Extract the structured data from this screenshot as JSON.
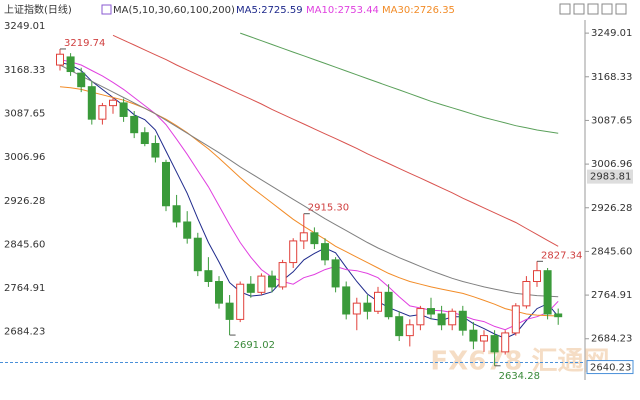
{
  "chart_data": {
    "type": "candlestick",
    "title": "上证指数(日线)",
    "indicator": "MA(5,10,30,60,100,200)",
    "legend": [
      "MA5:2725.59",
      "MA10:2753.44",
      "MA30:2726.35"
    ],
    "watermark": "FX678 汇通网",
    "ylim": [
      2608,
      3264
    ],
    "yticks": [
      3249.01,
      3168.33,
      3087.65,
      3006.96,
      2926.28,
      {
        "value": 2845.6,
        "label": "2845.60"
      },
      2764.91,
      2684.23
    ],
    "up_color": "#e0403a",
    "down_color": "#3a9a3a",
    "candles": {
      "open": [
        3190,
        3205,
        3175,
        3150,
        3090,
        3115,
        3120,
        3095,
        3065,
        3045,
        3010,
        2930,
        2900,
        2870,
        2810,
        2790,
        2750,
        2720,
        2785,
        2770,
        2800,
        2780,
        2825,
        2865,
        2880,
        2860,
        2830,
        2780,
        2730,
        2750,
        2735,
        2770,
        2725,
        2690,
        2710,
        2740,
        2730,
        2710,
        2735,
        2700,
        2680,
        2690,
        2660,
        2695,
        2745,
        2790,
        2810,
        2730
      ],
      "high": [
        3219.74,
        3212,
        3185,
        3160,
        3120,
        3130,
        3128,
        3105,
        3075,
        3060,
        3015,
        2950,
        2920,
        2880,
        2835,
        2800,
        2765,
        2790,
        2800,
        2805,
        2810,
        2830,
        2870,
        2915.3,
        2890,
        2870,
        2835,
        2790,
        2760,
        2765,
        2780,
        2785,
        2735,
        2720,
        2745,
        2760,
        2745,
        2740,
        2745,
        2715,
        2700,
        2700,
        2700,
        2750,
        2800,
        2827.34,
        2815,
        2740
      ],
      "low": [
        3180,
        3170,
        3140,
        3080,
        3080,
        3100,
        3085,
        3055,
        3040,
        3010,
        2920,
        2890,
        2860,
        2800,
        2780,
        2740,
        2691.02,
        2715,
        2760,
        2765,
        2770,
        2775,
        2815,
        2850,
        2850,
        2820,
        2770,
        2720,
        2700,
        2720,
        2730,
        2720,
        2680,
        2670,
        2700,
        2720,
        2700,
        2700,
        2690,
        2665,
        2660,
        2634.28,
        2655,
        2690,
        2740,
        2780,
        2720,
        2710
      ],
      "close": [
        3210,
        3178,
        3150,
        3090,
        3115,
        3125,
        3095,
        3065,
        3045,
        3020,
        2930,
        2900,
        2870,
        2810,
        2790,
        2750,
        2720,
        2785,
        2770,
        2800,
        2780,
        2825,
        2865,
        2880,
        2860,
        2830,
        2780,
        2730,
        2750,
        2735,
        2770,
        2725,
        2690,
        2710,
        2740,
        2730,
        2710,
        2735,
        2700,
        2680,
        2690,
        2660,
        2695,
        2745,
        2790,
        2810,
        2730,
        2725
      ]
    },
    "series": [
      {
        "name": "MA5",
        "color": "#1f2a8c",
        "values": [
          3195,
          3190,
          3180,
          3160,
          3145,
          3130,
          3115,
          3098,
          3089,
          3070,
          3031,
          2992,
          2953,
          2906,
          2862,
          2826,
          2788,
          2771,
          2763,
          2765,
          2771,
          2792,
          2808,
          2830,
          2842,
          2852,
          2843,
          2816,
          2790,
          2767,
          2753,
          2742,
          2734,
          2726,
          2729,
          2721,
          2718,
          2725,
          2725,
          2712,
          2703,
          2693,
          2685,
          2694,
          2718,
          2740,
          2749,
          2725.59
        ]
      },
      {
        "name": "MA10",
        "color": "#e040e0",
        "values": [
          3200,
          3196,
          3190,
          3180,
          3170,
          3158,
          3145,
          3130,
          3115,
          3100,
          3080,
          3053,
          3025,
          2995,
          2965,
          2930,
          2895,
          2862,
          2835,
          2812,
          2798,
          2790,
          2785,
          2797,
          2803,
          2812,
          2818,
          2812,
          2810,
          2805,
          2797,
          2780,
          2762,
          2745,
          2741,
          2737,
          2736,
          2733,
          2727,
          2720,
          2716,
          2707,
          2701,
          2710,
          2720,
          2725,
          2733,
          2753.44
        ]
      },
      {
        "name": "MA30",
        "color": "#f28c28",
        "values": [
          3150,
          3148,
          3145,
          3140,
          3135,
          3130,
          3125,
          3118,
          3110,
          3100,
          3090,
          3078,
          3065,
          3050,
          3035,
          3018,
          3000,
          2982,
          2965,
          2950,
          2935,
          2920,
          2905,
          2892,
          2880,
          2868,
          2855,
          2845,
          2835,
          2825,
          2815,
          2805,
          2797,
          2790,
          2785,
          2780,
          2776,
          2772,
          2768,
          2762,
          2755,
          2748,
          2740,
          2735,
          2730,
          2728,
          2727,
          2726.35
        ]
      },
      {
        "name": "MA60",
        "color": "#808080",
        "values": [
          3190,
          3180,
          3170,
          3160,
          3150,
          3140,
          3130,
          3120,
          3110,
          3100,
          3088,
          3076,
          3064,
          3052,
          3040,
          3028,
          3015,
          3002,
          2990,
          2978,
          2966,
          2954,
          2942,
          2930,
          2918,
          2906,
          2895,
          2884,
          2873,
          2862,
          2852,
          2843,
          2834,
          2826,
          2818,
          2810,
          2803,
          2796,
          2790,
          2785,
          2780,
          2776,
          2772,
          2768,
          2766,
          2764,
          2763,
          2762
        ]
      },
      {
        "name": "MA100",
        "color": "#d9534f",
        "values": [
          null,
          null,
          null,
          null,
          null,
          3245,
          3236,
          3227,
          3218,
          3209,
          3200,
          3190,
          3181,
          3172,
          3163,
          3154,
          3145,
          3136,
          3127,
          3118,
          3108,
          3099,
          3090,
          3081,
          3072,
          3063,
          3054,
          3045,
          3036,
          3026,
          3017,
          3008,
          2999,
          2990,
          2981,
          2972,
          2963,
          2954,
          2944,
          2935,
          2926,
          2917,
          2908,
          2899,
          2888,
          2877,
          2866,
          2855
        ]
      },
      {
        "name": "MA200",
        "color": "#5aa05a",
        "values": [
          null,
          null,
          null,
          null,
          null,
          null,
          null,
          null,
          null,
          null,
          null,
          null,
          null,
          null,
          null,
          null,
          null,
          3249,
          3242,
          3235,
          3228,
          3221,
          3214,
          3207,
          3200,
          3193,
          3186,
          3179,
          3172,
          3165,
          3158,
          3151,
          3144,
          3137,
          3130,
          3123,
          3117,
          3111,
          3105,
          3099,
          3093,
          3088,
          3083,
          3078,
          3074,
          3070,
          3067,
          3064
        ]
      }
    ],
    "annotations": [
      {
        "label": "3219.74",
        "candle": 0,
        "at": "high"
      },
      {
        "label": "2691.02",
        "candle": 16,
        "at": "low"
      },
      {
        "label": "2915.30",
        "candle": 23,
        "at": "high"
      },
      {
        "label": "2827.34",
        "candle": 45,
        "at": "high"
      },
      {
        "label": "2634.28",
        "candle": 41,
        "at": "low"
      }
    ],
    "price_markers": [
      {
        "value": 2983.81,
        "label": "2983.81",
        "style": "box"
      },
      {
        "value": 2640.23,
        "label": "2640.23",
        "style": "dashed"
      }
    ]
  }
}
